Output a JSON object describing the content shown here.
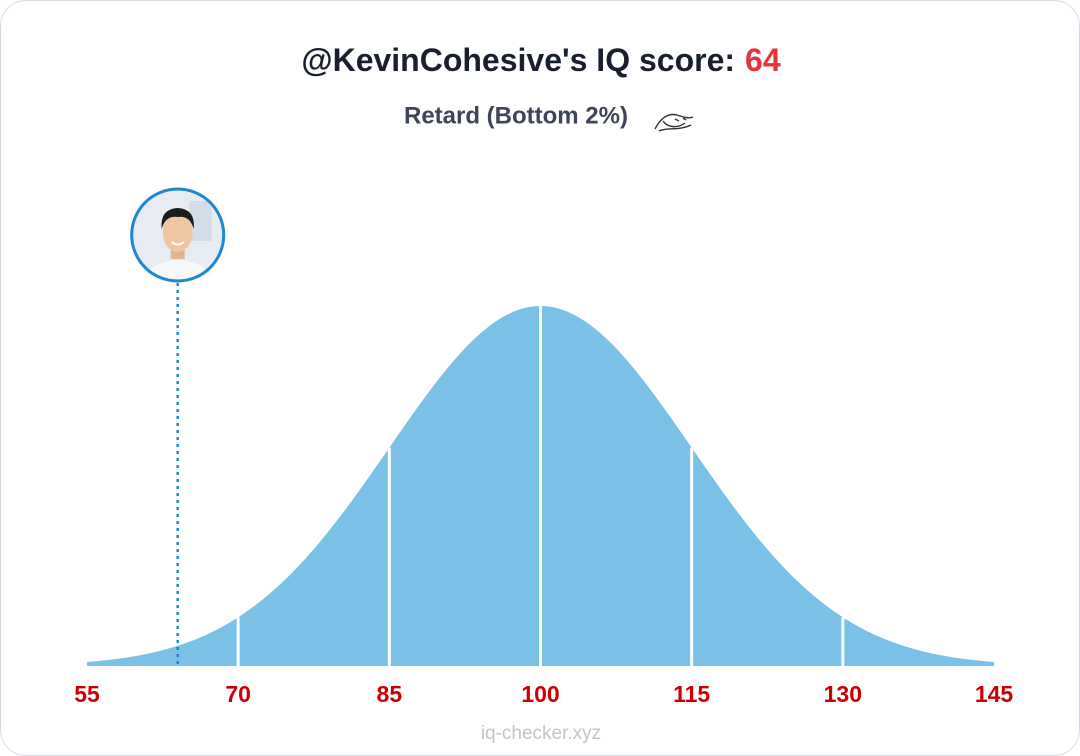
{
  "chart_data": {
    "type": "bell",
    "title": "@KevinCohesive's IQ score:",
    "score": 64,
    "subtitle": "Retard (Bottom 2%)",
    "xlim": [
      55,
      145
    ],
    "xticks": [
      55,
      70,
      85,
      100,
      115,
      130,
      145
    ],
    "color": "#7bc0e6",
    "score_color": "#e8333a",
    "tick_color": "#cc0000",
    "marker_color": "#1f86d0",
    "footer": "iq-checker.xyz"
  }
}
